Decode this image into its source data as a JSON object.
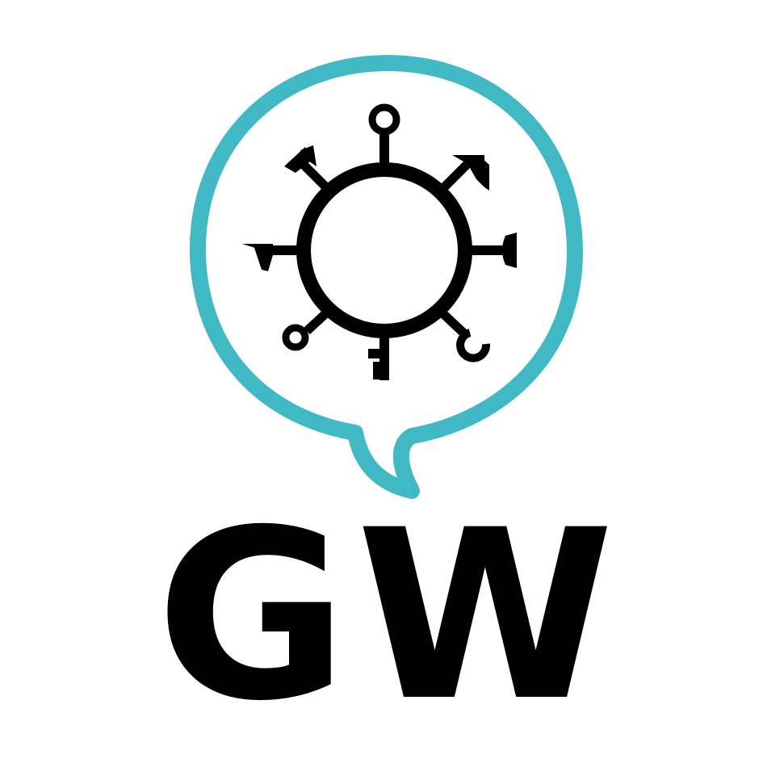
{
  "logo": {
    "wordmark": "GW",
    "colors": {
      "bubble_outline": "#41b9c4",
      "symbol": "#000000",
      "wordmark": "#000000",
      "background": "#ffffff"
    },
    "icons": [
      "speech-bubble-icon",
      "circle-ring-icon",
      "key-ring-spoke-icon",
      "arrow-spoke-icon",
      "nail-head-spoke-icon",
      "wrench-spoke-icon",
      "key-bit-spoke-icon",
      "magnifier-spoke-icon",
      "spear-spoke-icon",
      "axe-spoke-icon"
    ]
  }
}
